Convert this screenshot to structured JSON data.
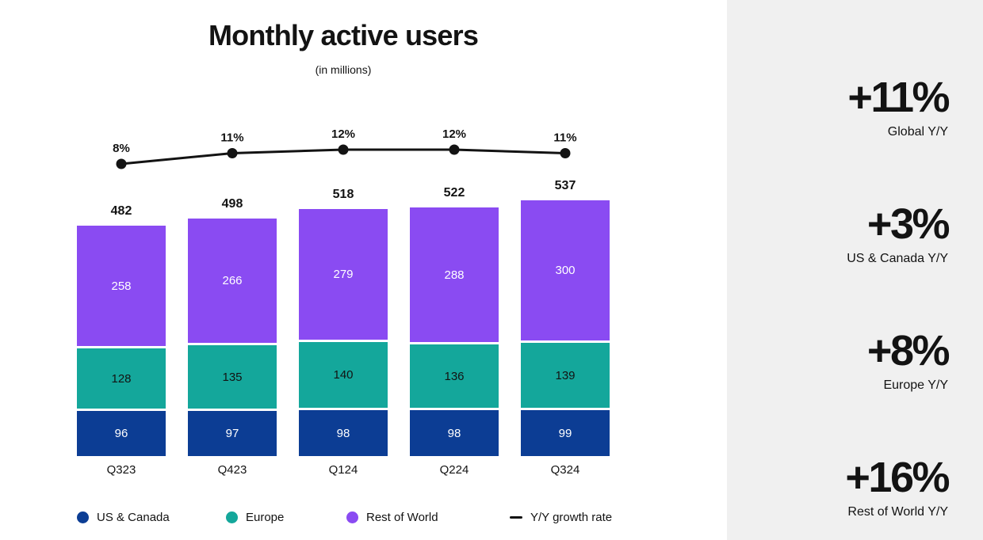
{
  "header": {
    "title": "Monthly active users",
    "subtitle": "(in millions)"
  },
  "chart_data": {
    "type": "bar",
    "subtype": "stacked-bars-with-growth-line",
    "title": "Monthly active users",
    "units": "millions",
    "categories": [
      "Q323",
      "Q423",
      "Q124",
      "Q224",
      "Q324"
    ],
    "series": [
      {
        "name": "US & Canada",
        "color": "#0c3d94",
        "label_color": "#ffffff",
        "values": [
          96,
          97,
          98,
          98,
          99
        ]
      },
      {
        "name": "Europe",
        "color": "#14a79b",
        "label_color": "#131313",
        "values": [
          128,
          135,
          140,
          136,
          139
        ]
      },
      {
        "name": "Rest of World",
        "color": "#8a4bf2",
        "label_color": "#ffffff",
        "values": [
          258,
          266,
          279,
          288,
          300
        ]
      }
    ],
    "totals": [
      482,
      498,
      518,
      522,
      537
    ],
    "line": {
      "name": "Y/Y growth rate",
      "color": "#131313",
      "values_pct": [
        8,
        11,
        12,
        12,
        11
      ],
      "labels": [
        "8%",
        "11%",
        "12%",
        "12%",
        "11%"
      ]
    },
    "legend_position": "bottom",
    "grid": false
  },
  "stats": [
    {
      "value": "+11%",
      "label": "Global Y/Y"
    },
    {
      "value": "+3%",
      "label": "US & Canada Y/Y"
    },
    {
      "value": "+8%",
      "label": "Europe Y/Y"
    },
    {
      "value": "+16%",
      "label": "Rest of World Y/Y"
    }
  ],
  "colors": {
    "background": "#ffffff",
    "panel_background": "#f0f0f0",
    "text": "#131313"
  }
}
